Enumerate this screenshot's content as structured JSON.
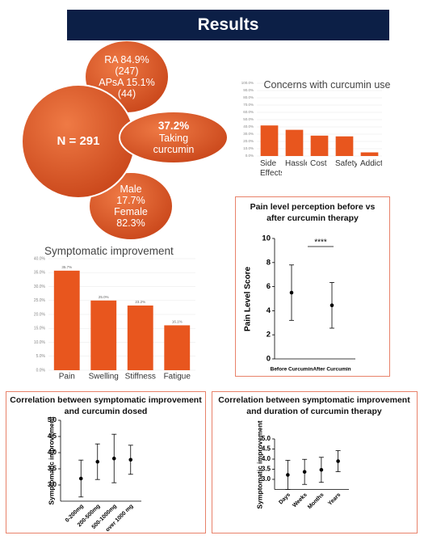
{
  "header": {
    "title": "Results"
  },
  "diagram": {
    "center": "N = 291",
    "ra": "RA 84.9% (247)",
    "apsa": "APsA 15.1% (44)",
    "curcumin_percent": "37.2%",
    "curcumin_label": "Taking curcumin",
    "male": "Male 17.7%",
    "female": "Female 82.3%"
  },
  "chart_data": [
    {
      "type": "bar",
      "title": "Concerns with curcumin use",
      "categories": [
        "Side Effects",
        "Hassle",
        "Cost",
        "Safety",
        "Addiction"
      ],
      "values": [
        42,
        36,
        28,
        27,
        5
      ],
      "color": "#e8561e",
      "ylim": [
        0,
        100
      ],
      "yticks": [
        {
          "value": 0,
          "label": "0.0%"
        },
        {
          "value": 10,
          "label": "10.0%"
        },
        {
          "value": 20,
          "label": "20.0%"
        },
        {
          "value": 30,
          "label": "30.0%"
        },
        {
          "value": 40,
          "label": "40.0%"
        },
        {
          "value": 50,
          "label": "50.0%"
        },
        {
          "value": 60,
          "label": "60.0%"
        },
        {
          "value": 70,
          "label": "70.0%"
        },
        {
          "value": 80,
          "label": "80.0%"
        },
        {
          "value": 90,
          "label": "90.0%"
        },
        {
          "value": 100,
          "label": "100.0%"
        }
      ],
      "grid": true
    },
    {
      "type": "bar",
      "title": "Symptomatic improvement",
      "categories": [
        "Pain",
        "Swelling",
        "Stiffness",
        "Fatigue"
      ],
      "values": [
        35.7,
        25,
        23.2,
        16.1
      ],
      "value_labels": [
        "35.7%",
        "25.0%",
        "23.2%",
        "16.1%"
      ],
      "color": "#e8561e",
      "ylim": [
        0,
        40
      ],
      "yticks": [
        {
          "value": 0,
          "label": "0.0%"
        },
        {
          "value": 5,
          "label": "5.0%"
        },
        {
          "value": 10,
          "label": "10.0%"
        },
        {
          "value": 15,
          "label": "15.0%"
        },
        {
          "value": 20,
          "label": "20.0%"
        },
        {
          "value": 25,
          "label": "25.0%"
        },
        {
          "value": 30,
          "label": "30.0%"
        },
        {
          "value": 35,
          "label": "35.0%"
        },
        {
          "value": 40,
          "label": "40.0%"
        }
      ],
      "grid": true
    },
    {
      "type": "errorbar",
      "title": "Pain level perception before vs after curcumin therapy",
      "categories": [
        "Before Curcumin",
        "After Curcumin"
      ],
      "values": [
        5.5,
        4.45
      ],
      "errors": [
        2.3,
        1.9
      ],
      "ylabel": "Pain Level Score",
      "ylim": [
        0,
        10
      ],
      "yticks": [
        0,
        2,
        4,
        6,
        8,
        10
      ],
      "annotation": "****",
      "color": "#000000"
    },
    {
      "type": "errorbar",
      "title": "Correlation between symptomatic improvement and curcumin dosed",
      "categories": [
        "0-200mg",
        "200-500mg",
        "500-1000mg",
        "over 1000 mg"
      ],
      "values": [
        3.2,
        3.72,
        3.82,
        3.78
      ],
      "errors": [
        0.57,
        0.55,
        0.75,
        0.45
      ],
      "ylabel": "Symptomatic improvement",
      "ylim": [
        2.5,
        5
      ],
      "yticks": [
        {
          "value": 3,
          "label": "3.0"
        },
        {
          "value": 3.5,
          "label": "3.5"
        },
        {
          "value": 4,
          "label": "4.0"
        },
        {
          "value": 4.5,
          "label": "4.5"
        },
        {
          "value": 5,
          "label": "5.0"
        }
      ],
      "color": "#000000"
    },
    {
      "type": "errorbar",
      "title": "Correlation between symptomatic improvement and duration of curcumin therapy",
      "categories": [
        "Days",
        "Weeks",
        "Months",
        "Years"
      ],
      "values": [
        3.22,
        3.37,
        3.47,
        3.9
      ],
      "errors": [
        0.72,
        0.62,
        0.62,
        0.52
      ],
      "ylabel": "Symptomatic improvement",
      "ylim": [
        2.5,
        5
      ],
      "yticks": [
        {
          "value": 3,
          "label": "3.0"
        },
        {
          "value": 3.5,
          "label": "3.5"
        },
        {
          "value": 4,
          "label": "4.0"
        },
        {
          "value": 4.5,
          "label": "4.5"
        },
        {
          "value": 5,
          "label": "5.0"
        }
      ],
      "color": "#000000"
    }
  ]
}
